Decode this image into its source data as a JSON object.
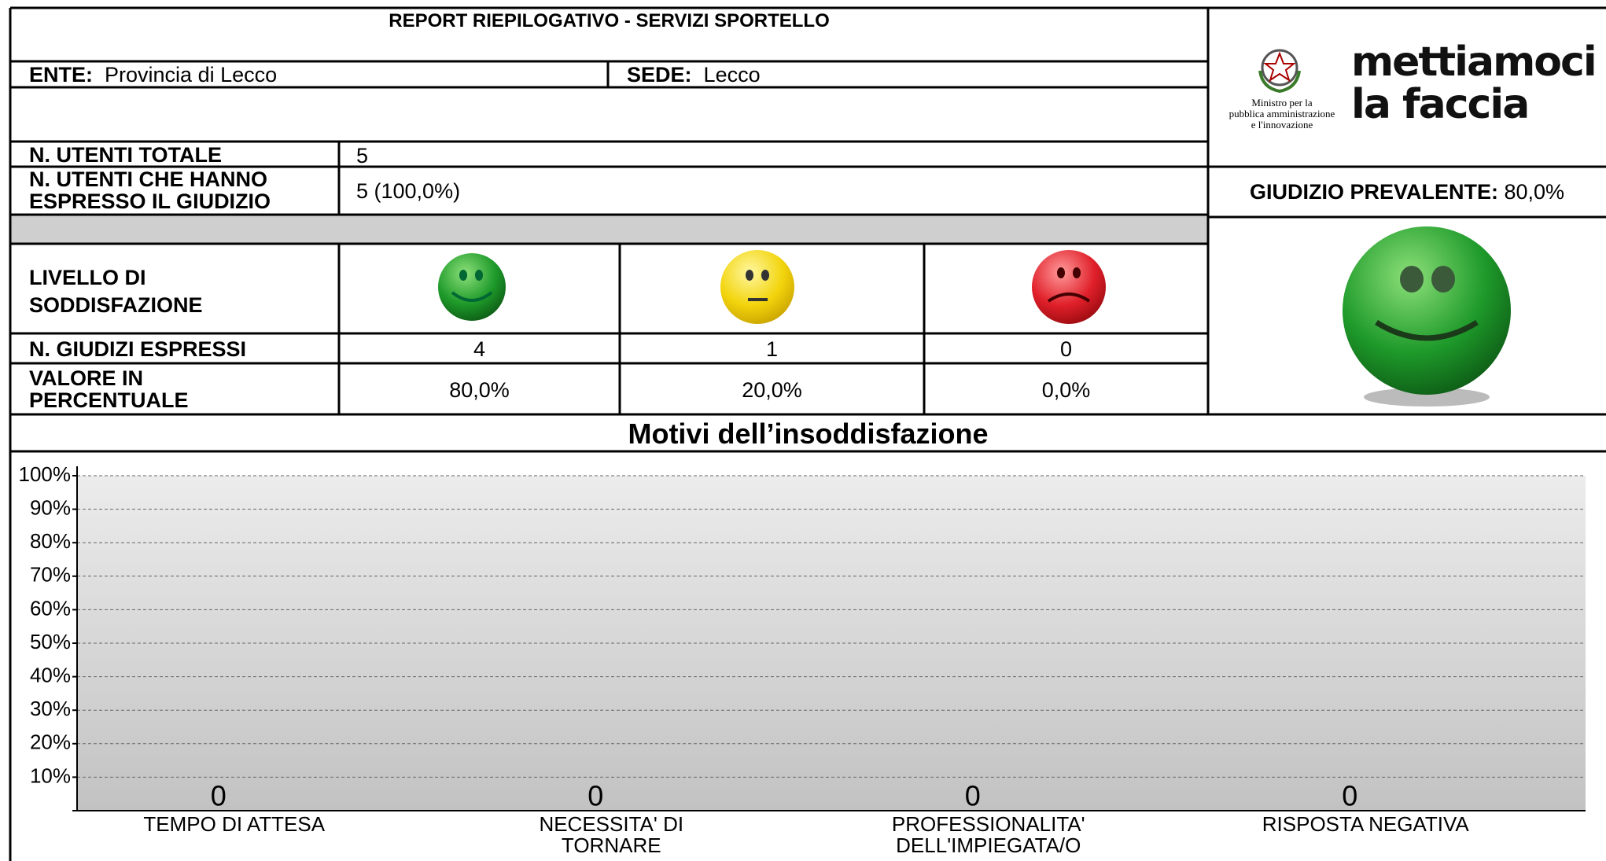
{
  "header": {
    "title": "REPORT RIEPILOGATIVO - SERVIZI SPORTELLO",
    "ente_label": "ENTE:",
    "ente": "Provincia di Lecco",
    "sede_label": "SEDE:",
    "sede": "Lecco"
  },
  "logo": {
    "ministry_lines": [
      "Ministro per la",
      "pubblica amministrazione",
      "e l'innovazione"
    ],
    "brand_lines": [
      "mettiamoci",
      "la faccia"
    ]
  },
  "summary": {
    "total_label": "N. UTENTI TOTALE",
    "total": 5,
    "expressed_label": "N. UTENTI CHE HANNO ESPRESSO IL GIUDIZIO",
    "expressed": "5 (100,0%)",
    "prevalent_label": "GIUDIZIO PREVALENTE:",
    "prevalent": "80,0%"
  },
  "table": {
    "level_label": "LIVELLO DI SODDISFAZIONE",
    "count_label": "N. GIUDIZI ESPRESSI",
    "counts": [
      4,
      1,
      0
    ],
    "percent_label": "VALORE IN PERCENTUALE",
    "percents": [
      "80,0%",
      "20,0%",
      "0,0%"
    ]
  },
  "chart_data": {
    "type": "bar",
    "title": "Motivi dell’insoddisfazione",
    "categories": [
      "TEMPO DI ATTESA",
      "NECESSITA' DI TORNARE",
      "PROFESSIONALITA' DELL'IMPIEGATA/O",
      "RISPOSTA NEGATIVA"
    ],
    "values": [
      0,
      0,
      0,
      0
    ],
    "color": "#7f7f7f",
    "ylim": [
      0,
      100
    ],
    "yticks": [
      {
        "value": 10,
        "label": "10%"
      },
      {
        "value": 20,
        "label": "20%"
      },
      {
        "value": 30,
        "label": "30%"
      },
      {
        "value": 40,
        "label": "40%"
      },
      {
        "value": 50,
        "label": "50%"
      },
      {
        "value": 60,
        "label": "60%"
      },
      {
        "value": 70,
        "label": "70%"
      },
      {
        "value": 80,
        "label": "80%"
      },
      {
        "value": 90,
        "label": "90%"
      },
      {
        "value": 100,
        "label": "100%"
      }
    ],
    "grid": true
  }
}
